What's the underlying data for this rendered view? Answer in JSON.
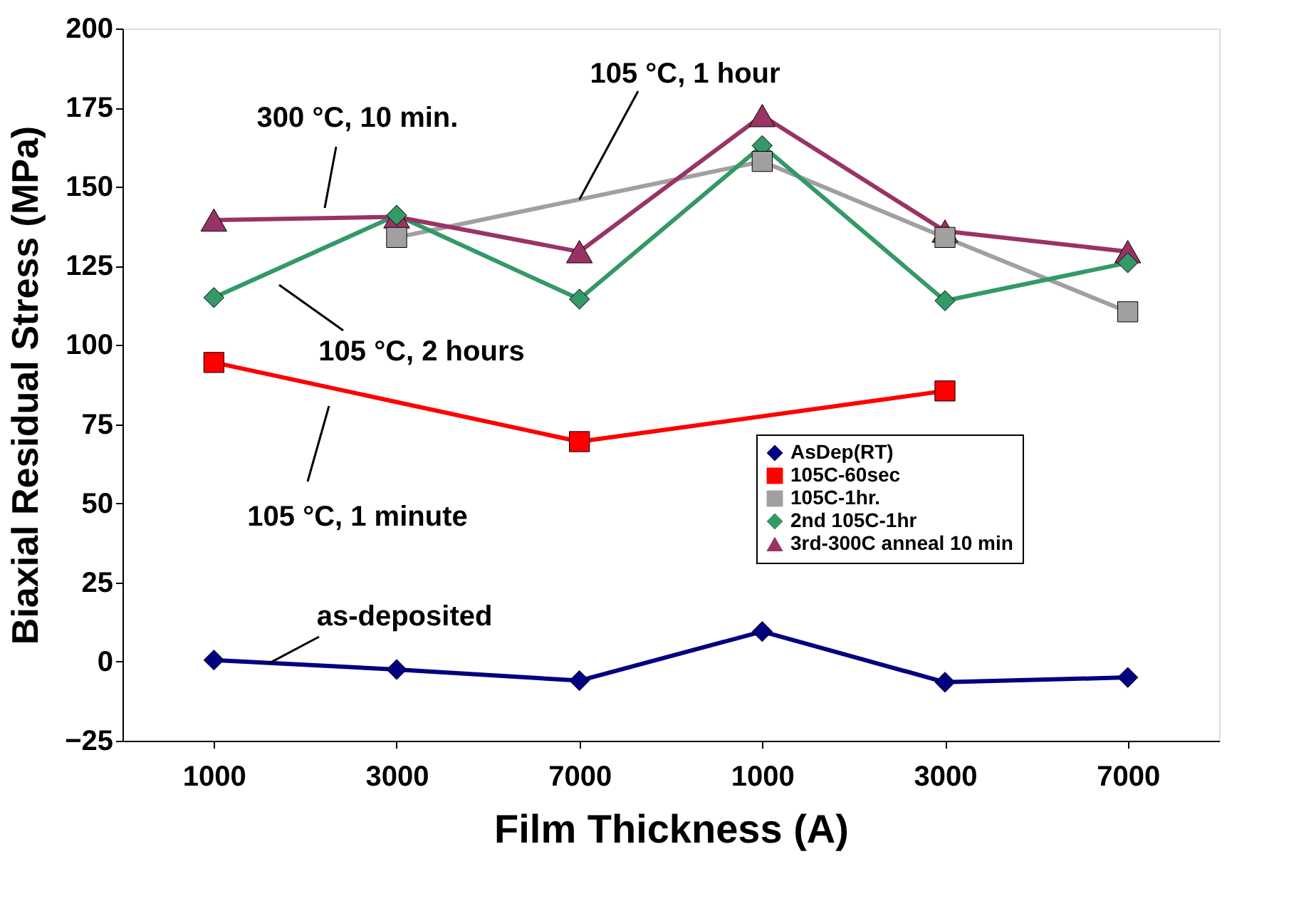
{
  "chart_data": {
    "type": "line",
    "xlabel": "Film Thickness (A)",
    "ylabel": "Biaxial Residual Stress (MPa)",
    "categories": [
      "1000",
      "3000",
      "7000",
      "1000",
      "3000",
      "7000"
    ],
    "ylim": [
      -25,
      200
    ],
    "yticks": [
      -25,
      0,
      25,
      50,
      75,
      100,
      125,
      150,
      175,
      200
    ],
    "grid": false,
    "legend": "bottom right",
    "line_style": "solid",
    "series": [
      {
        "name": "AsDep(RT)",
        "color": "#000080",
        "marker": "diamond",
        "values": [
          0.5,
          -2.5,
          -6,
          9.5,
          -6.5,
          -5
        ]
      },
      {
        "name": "105C-60sec",
        "color": "#ff0000",
        "marker": "square",
        "values": [
          94.5,
          null,
          69.5,
          null,
          85.5,
          null
        ]
      },
      {
        "name": "105C-1hr.",
        "color": "#a0a0a0",
        "marker": "square",
        "values": [
          null,
          134,
          null,
          158,
          134,
          110.5
        ]
      },
      {
        "name": "2nd 105C-1hr",
        "color": "#339966",
        "marker": "diamond",
        "values": [
          115,
          141,
          114.5,
          163,
          114,
          126
        ]
      },
      {
        "name": "3rd-300C anneal 10 min",
        "color": "#993366",
        "marker": "triangle",
        "values": [
          139.5,
          140.5,
          129.5,
          172.5,
          136,
          129.5
        ]
      }
    ],
    "annotations": [
      "300 °C, 10 min.",
      {
        "text": "105 °C, 1 hour",
        "x": "7000",
        "y": 146
      },
      "105 °C, 2 hours",
      "105 °C, 1 minute",
      {
        "text": "as-deposited",
        "y": -0.5
      }
    ]
  }
}
